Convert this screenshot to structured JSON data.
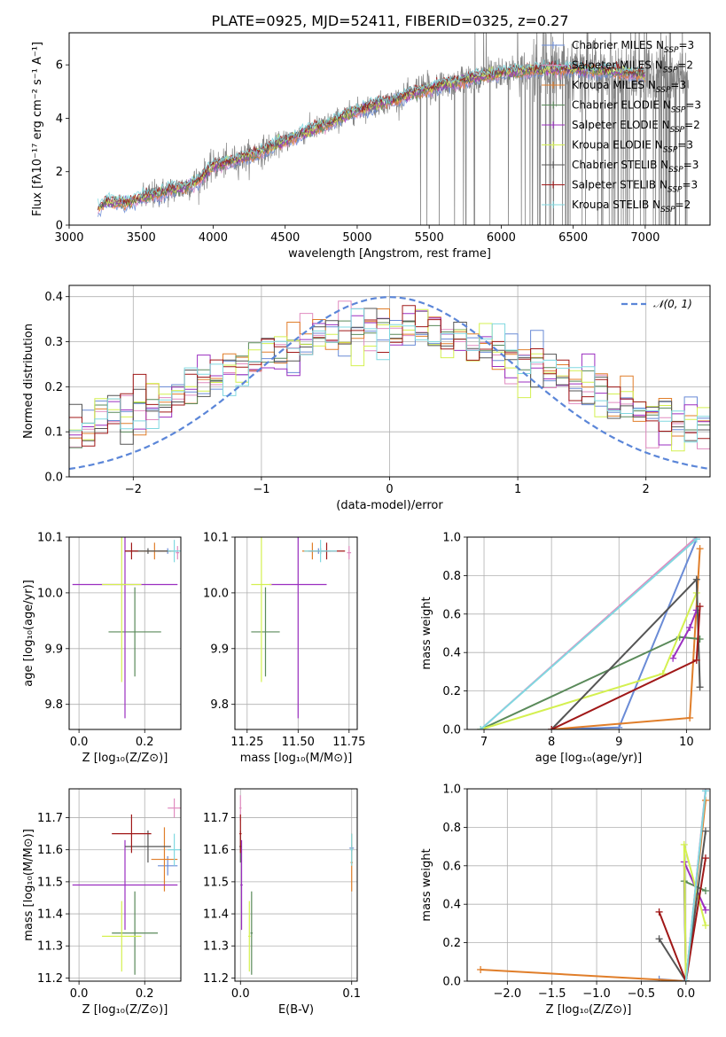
{
  "figure": {
    "title": "PLATE=0925, MJD=52411, FIBERID=0325, z=0.27"
  },
  "models": [
    {
      "name": "Chabrier MILES",
      "nssp": "3",
      "color": "#6a8bd6"
    },
    {
      "name": "Salpeter MILES",
      "nssp": "2",
      "color": "#e08bc0"
    },
    {
      "name": "Kroupa MILES",
      "nssp": "3",
      "color": "#e07e2a"
    },
    {
      "name": "Chabrier ELODIE",
      "nssp": "3",
      "color": "#5a8a5a"
    },
    {
      "name": "Salpeter ELODIE",
      "nssp": "2",
      "color": "#9b2fc0"
    },
    {
      "name": "Kroupa ELODIE",
      "nssp": "3",
      "color": "#d4f050"
    },
    {
      "name": "Chabrier STELIB",
      "nssp": "3",
      "color": "#555555"
    },
    {
      "name": "Salpeter STELIB",
      "nssp": "3",
      "color": "#a01818"
    },
    {
      "name": "Kroupa STELIB",
      "nssp": "2",
      "color": "#80d8e0"
    }
  ],
  "nssp_prefix": "N",
  "nssp_sub": "SSP",
  "chart_data": [
    {
      "id": "spectrum",
      "type": "line",
      "xlabel": "wavelength [Angstrom, rest frame]",
      "ylabel": "Flux [fλ10⁻¹⁷ erg cm⁻² s⁻¹ A⁻¹]",
      "xlim": [
        3000,
        7450
      ],
      "ylim": [
        0,
        7.2
      ],
      "xticks": [
        3000,
        3500,
        4000,
        4500,
        5000,
        5500,
        6000,
        6500,
        7000
      ],
      "yticks": [
        0,
        2,
        4,
        6
      ],
      "grid": false,
      "data_color": "#808080",
      "data_range": [
        3200,
        7300
      ],
      "continuum": [
        [
          3200,
          0.6
        ],
        [
          3250,
          0.85
        ],
        [
          3400,
          0.85
        ],
        [
          3500,
          1.0
        ],
        [
          3600,
          1.15
        ],
        [
          3700,
          1.3
        ],
        [
          3800,
          1.4
        ],
        [
          3900,
          1.7
        ],
        [
          4000,
          2.2
        ],
        [
          4200,
          2.5
        ],
        [
          4400,
          2.9
        ],
        [
          4600,
          3.4
        ],
        [
          4800,
          3.8
        ],
        [
          5000,
          4.3
        ],
        [
          5200,
          4.6
        ],
        [
          5400,
          4.95
        ],
        [
          5600,
          5.25
        ],
        [
          5800,
          5.5
        ],
        [
          6000,
          5.7
        ],
        [
          6200,
          5.8
        ],
        [
          6400,
          5.85
        ],
        [
          6600,
          5.8
        ],
        [
          6800,
          5.75
        ],
        [
          7000,
          5.6
        ],
        [
          7300,
          5.5
        ]
      ],
      "legend_position": "upper right"
    },
    {
      "id": "residuals",
      "type": "line",
      "xlabel": "(data-model)/error",
      "ylabel": "Normed distribution",
      "xlim": [
        -2.5,
        2.5
      ],
      "ylim": [
        0,
        0.425
      ],
      "xticks": [
        -2,
        -1,
        0,
        1,
        2
      ],
      "yticks": [
        0.0,
        0.1,
        0.2,
        0.3,
        0.4
      ],
      "grid": true,
      "gaussian_label": "𝒩(0, 1)",
      "gaussian_color": "#5b86d8",
      "bin_width": 0.1,
      "legend_position": "upper right"
    },
    {
      "id": "age-vs-Z",
      "type": "scatter",
      "xlabel": "Z [log₁₀(Z/Z⊙)]",
      "ylabel": "age  [log₁₀(age/yr)]",
      "xlim": [
        -0.03,
        0.31
      ],
      "ylim": [
        9.755,
        10.1
      ],
      "xticks": [
        0.0,
        0.2
      ],
      "yticks": [
        9.8,
        9.9,
        10.0,
        10.1
      ],
      "grid": true,
      "points": [
        {
          "model": 0,
          "x": 0.27,
          "y": 10.075,
          "xerr": 0.03,
          "yerr": 0.005
        },
        {
          "model": 1,
          "x": 0.3,
          "y": 10.072,
          "xerr": 0.005,
          "yerr": 0.012
        },
        {
          "model": 2,
          "x": 0.23,
          "y": 10.075,
          "xerr": 0.06,
          "yerr": 0.015
        },
        {
          "model": 3,
          "x": 0.17,
          "y": 9.93,
          "xerr": 0.08,
          "yerr": 0.08
        },
        {
          "model": 4,
          "x": 0.14,
          "y": 10.015,
          "xerr": 0.16,
          "yerr": 0.24
        },
        {
          "model": 5,
          "x": 0.13,
          "y": 10.015,
          "xerr": 0.06,
          "yerr": 0.175
        },
        {
          "model": 6,
          "x": 0.21,
          "y": 10.075,
          "xerr": 0.07,
          "yerr": 0.005
        },
        {
          "model": 7,
          "x": 0.16,
          "y": 10.075,
          "xerr": 0.02,
          "yerr": 0.015
        },
        {
          "model": 8,
          "x": 0.29,
          "y": 10.075,
          "xerr": 0.02,
          "yerr": 0.02
        }
      ]
    },
    {
      "id": "age-vs-mass",
      "type": "scatter",
      "xlabel": "mass [log₁₀(M/M⊙)]",
      "ylabel": "",
      "xlim": [
        11.19,
        11.79
      ],
      "ylim": [
        9.755,
        10.1
      ],
      "xticks": [
        11.25,
        11.5,
        11.75
      ],
      "yticks": [
        9.8,
        9.9,
        10.0,
        10.1
      ],
      "grid": true,
      "points": [
        {
          "model": 0,
          "x": 11.6,
          "y": 10.075,
          "xerr": 0.05,
          "yerr": 0.005
        },
        {
          "model": 1,
          "x": 11.75,
          "y": 10.072,
          "xerr": 0.01,
          "yerr": 0.012
        },
        {
          "model": 2,
          "x": 11.57,
          "y": 10.075,
          "xerr": 0.05,
          "yerr": 0.015
        },
        {
          "model": 3,
          "x": 11.34,
          "y": 9.93,
          "xerr": 0.07,
          "yerr": 0.08
        },
        {
          "model": 4,
          "x": 11.5,
          "y": 10.015,
          "xerr": 0.14,
          "yerr": 0.24
        },
        {
          "model": 5,
          "x": 11.32,
          "y": 10.015,
          "xerr": 0.05,
          "yerr": 0.175
        },
        {
          "model": 6,
          "x": 11.61,
          "y": 10.075,
          "xerr": 0.05,
          "yerr": 0.005
        },
        {
          "model": 7,
          "x": 11.64,
          "y": 10.075,
          "xerr": 0.09,
          "yerr": 0.015
        },
        {
          "model": 8,
          "x": 11.61,
          "y": 10.075,
          "xerr": 0.08,
          "yerr": 0.02
        }
      ]
    },
    {
      "id": "weight-vs-age",
      "type": "line",
      "xlabel": "age  [log₁₀(age/yr)]",
      "ylabel": "mass weight",
      "xlim": [
        6.75,
        10.35
      ],
      "ylim": [
        0,
        1.0
      ],
      "xticks": [
        7,
        8,
        9,
        10
      ],
      "yticks": [
        0.0,
        0.2,
        0.4,
        0.6,
        0.8,
        1.0
      ],
      "grid": true,
      "series": [
        {
          "model": 0,
          "x": [
            8.0,
            9.0,
            10.15
          ],
          "y": [
            0.0,
            0.01,
            0.99
          ]
        },
        {
          "model": 1,
          "x": [
            6.95,
            10.15
          ],
          "y": [
            0.0,
            1.0
          ]
        },
        {
          "model": 2,
          "x": [
            8.0,
            10.05,
            10.2
          ],
          "y": [
            0.0,
            0.06,
            0.94
          ]
        },
        {
          "model": 3,
          "x": [
            6.95,
            9.9,
            10.2
          ],
          "y": [
            0.0,
            0.48,
            0.47
          ]
        },
        {
          "model": 4,
          "x": [
            9.8,
            10.05,
            10.15
          ],
          "y": [
            0.37,
            0.53,
            0.62
          ]
        },
        {
          "model": 5,
          "x": [
            6.95,
            9.65,
            10.15
          ],
          "y": [
            0.0,
            0.29,
            0.71
          ]
        },
        {
          "model": 6,
          "x": [
            8.0,
            10.15,
            10.2
          ],
          "y": [
            0.0,
            0.78,
            0.22
          ]
        },
        {
          "model": 7,
          "x": [
            8.0,
            10.15,
            10.2
          ],
          "y": [
            0.0,
            0.36,
            0.64
          ]
        },
        {
          "model": 8,
          "x": [
            6.95,
            10.15
          ],
          "y": [
            0.0,
            0.99
          ]
        }
      ]
    },
    {
      "id": "mass-vs-Z",
      "type": "scatter",
      "xlabel": "Z [log₁₀(Z/Z⊙)]",
      "ylabel": "mass [log₁₀(M/M⊙)]",
      "xlim": [
        -0.03,
        0.31
      ],
      "ylim": [
        11.19,
        11.79
      ],
      "xticks": [
        0.0,
        0.2
      ],
      "yticks": [
        11.2,
        11.3,
        11.4,
        11.5,
        11.6,
        11.7
      ],
      "grid": true,
      "points": [
        {
          "model": 0,
          "x": 0.27,
          "y": 11.55,
          "xerr": 0.03,
          "yerr": 0.03
        },
        {
          "model": 1,
          "x": 0.29,
          "y": 11.73,
          "xerr": 0.02,
          "yerr": 0.03
        },
        {
          "model": 2,
          "x": 0.26,
          "y": 11.57,
          "xerr": 0.04,
          "yerr": 0.1
        },
        {
          "model": 3,
          "x": 0.17,
          "y": 11.34,
          "xerr": 0.07,
          "yerr": 0.13
        },
        {
          "model": 4,
          "x": 0.14,
          "y": 11.49,
          "xerr": 0.16,
          "yerr": 0.14
        },
        {
          "model": 5,
          "x": 0.13,
          "y": 11.33,
          "xerr": 0.06,
          "yerr": 0.11
        },
        {
          "model": 6,
          "x": 0.21,
          "y": 11.61,
          "xerr": 0.07,
          "yerr": 0.05
        },
        {
          "model": 7,
          "x": 0.16,
          "y": 11.65,
          "xerr": 0.06,
          "yerr": 0.06
        },
        {
          "model": 8,
          "x": 0.29,
          "y": 11.6,
          "xerr": 0.02,
          "yerr": 0.05
        }
      ]
    },
    {
      "id": "mass-vs-ebv",
      "type": "scatter",
      "xlabel": "E(B-V)",
      "ylabel": "",
      "xlim": [
        -0.005,
        0.105
      ],
      "ylim": [
        11.19,
        11.79
      ],
      "xticks": [
        0.0,
        0.1
      ],
      "yticks": [
        11.2,
        11.3,
        11.4,
        11.5,
        11.6,
        11.7
      ],
      "grid": true,
      "points": [
        {
          "model": 0,
          "x": 0.1,
          "y": 11.605,
          "xerr": 0.002,
          "yerr": 0.01
        },
        {
          "model": 1,
          "x": 0.0,
          "y": 11.73,
          "xerr": 0.001,
          "yerr": 0.04
        },
        {
          "model": 2,
          "x": 0.1,
          "y": 11.56,
          "xerr": 0.001,
          "yerr": 0.09
        },
        {
          "model": 3,
          "x": 0.01,
          "y": 11.34,
          "xerr": 0.001,
          "yerr": 0.13
        },
        {
          "model": 4,
          "x": 0.001,
          "y": 11.49,
          "xerr": 0.001,
          "yerr": 0.14
        },
        {
          "model": 5,
          "x": 0.008,
          "y": 11.33,
          "xerr": 0.001,
          "yerr": 0.11
        },
        {
          "model": 6,
          "x": 0.0,
          "y": 11.61,
          "xerr": 0.001,
          "yerr": 0.05
        },
        {
          "model": 7,
          "x": 0.0,
          "y": 11.65,
          "xerr": 0.001,
          "yerr": 0.06
        },
        {
          "model": 8,
          "x": 0.1,
          "y": 11.6,
          "xerr": 0.001,
          "yerr": 0.05
        }
      ]
    },
    {
      "id": "weight-vs-Z",
      "type": "line",
      "xlabel": "Z [log₁₀(Z/Z⊙)]",
      "ylabel": "mass weight",
      "xlim": [
        -2.45,
        0.27
      ],
      "ylim": [
        0,
        1.0
      ],
      "xticks": [
        -2.0,
        -1.5,
        -1.0,
        -0.5,
        0.0
      ],
      "yticks": [
        0.0,
        0.2,
        0.4,
        0.6,
        0.8,
        1.0
      ],
      "grid": true,
      "series": [
        {
          "model": 0,
          "x": [
            -0.3,
            0.0,
            0.22
          ],
          "y": [
            0.01,
            0.0,
            0.99
          ]
        },
        {
          "model": 1,
          "x": [
            0.0,
            0.22
          ],
          "y": [
            0.0,
            1.0
          ]
        },
        {
          "model": 2,
          "x": [
            -2.3,
            0.0,
            0.22
          ],
          "y": [
            0.06,
            0.0,
            0.94
          ]
        },
        {
          "model": 3,
          "x": [
            0.0,
            -0.02,
            0.22
          ],
          "y": [
            0.0,
            0.52,
            0.47
          ]
        },
        {
          "model": 4,
          "x": [
            0.0,
            -0.02,
            0.22
          ],
          "y": [
            0.0,
            0.62,
            0.37
          ]
        },
        {
          "model": 5,
          "x": [
            0.0,
            -0.02,
            0.22
          ],
          "y": [
            0.0,
            0.71,
            0.29
          ]
        },
        {
          "model": 6,
          "x": [
            -0.3,
            0.0,
            0.22
          ],
          "y": [
            0.22,
            0.0,
            0.78
          ]
        },
        {
          "model": 7,
          "x": [
            -0.3,
            0.0,
            0.22
          ],
          "y": [
            0.36,
            0.0,
            0.64
          ]
        },
        {
          "model": 8,
          "x": [
            0.0,
            0.22
          ],
          "y": [
            0.0,
            0.99
          ]
        }
      ]
    }
  ]
}
